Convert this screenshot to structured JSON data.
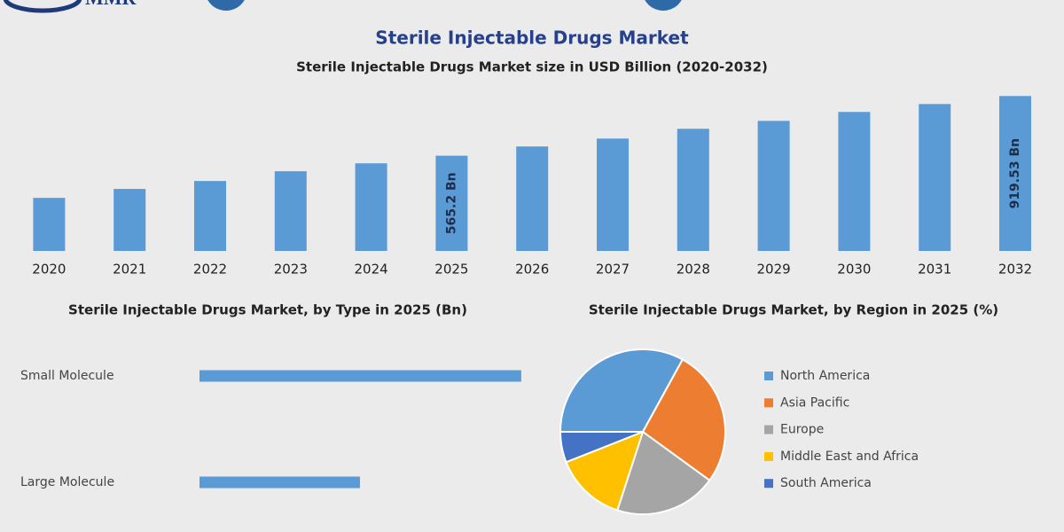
{
  "header": {
    "logo": "MMR"
  },
  "chart_data": [
    {
      "type": "bar",
      "title": "Sterile Injectable Drugs Market",
      "subtitle": "Sterile Injectable Drugs Market size in USD Billion (2020-2032)",
      "categories": [
        "2020",
        "2021",
        "2022",
        "2023",
        "2024",
        "2025",
        "2026",
        "2027",
        "2028",
        "2029",
        "2030",
        "2031",
        "2032"
      ],
      "values": [
        315,
        368,
        415,
        473,
        520,
        565.2,
        620,
        667,
        725,
        772,
        825,
        872,
        919.53
      ],
      "value_labels": [
        null,
        null,
        null,
        null,
        null,
        "565.2 Bn",
        null,
        null,
        null,
        null,
        null,
        null,
        "919.53 Bn"
      ],
      "color": "#5b9bd5",
      "ylim": [
        0,
        1000
      ]
    },
    {
      "type": "hbar",
      "title": "Sterile Injectable Drugs Market, by Type in 2025 (Bn)",
      "categories": [
        "Small Molecule",
        "Large Molecule"
      ],
      "values": [
        377,
        188
      ],
      "color": "#5b9bd5",
      "xlim": [
        0,
        400
      ]
    },
    {
      "type": "pie",
      "title": "Sterile Injectable Drugs Market, by Region in 2025 (%)",
      "categories": [
        "North America",
        "Asia Pacific",
        "Europe",
        "Middle East and Africa",
        "South America"
      ],
      "values": [
        33,
        27,
        20,
        14,
        6
      ],
      "colors": [
        "#5b9bd5",
        "#ed7d31",
        "#a5a5a5",
        "#ffc000",
        "#4472c4"
      ],
      "legend": "right"
    }
  ]
}
